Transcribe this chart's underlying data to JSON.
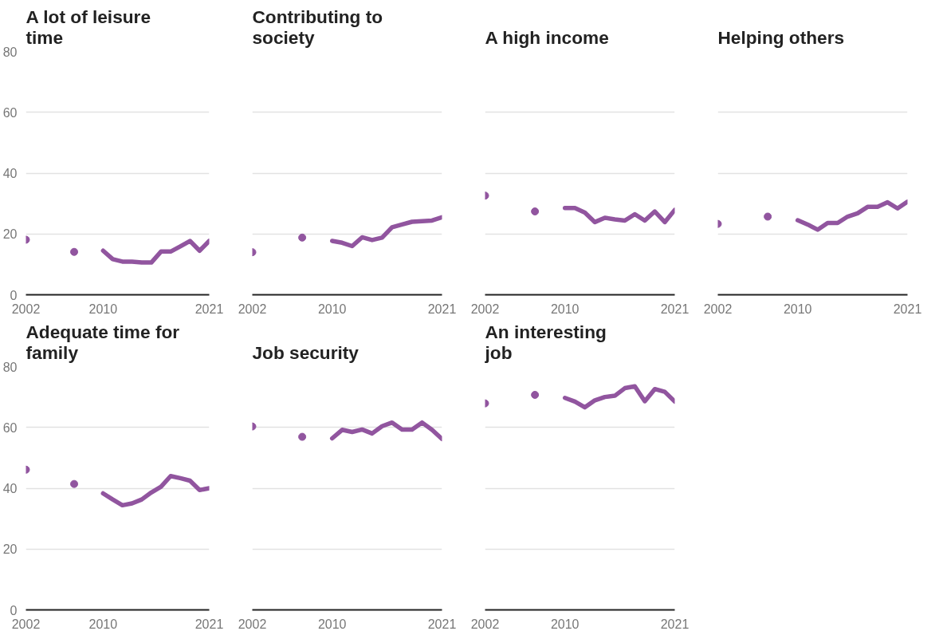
{
  "chart_data": [
    {
      "type": "line",
      "title": "A lot of leisure time",
      "color": "#91559f",
      "xlim": [
        2002,
        2021
      ],
      "ylim": [
        0,
        80
      ],
      "xticks": [
        2002,
        2010,
        2021
      ],
      "yticks": [
        0,
        20,
        40,
        60,
        80
      ],
      "grid": "y",
      "x": [
        2002,
        2003,
        2004,
        2005,
        2006,
        2007,
        2008,
        2009,
        2010,
        2011,
        2012,
        2013,
        2014,
        2015,
        2016,
        2017,
        2018,
        2019,
        2020,
        2021
      ],
      "values": [
        18.1,
        null,
        null,
        null,
        null,
        14.1,
        null,
        null,
        14.5,
        11.7,
        10.9,
        10.9,
        10.6,
        10.6,
        14.2,
        14.2,
        15.9,
        17.7,
        14.5,
        17.7
      ]
    },
    {
      "type": "line",
      "title": "Contributing to society",
      "color": "#91559f",
      "xlim": [
        2002,
        2021
      ],
      "ylim": [
        0,
        80
      ],
      "xticks": [
        2002,
        2010,
        2021
      ],
      "yticks": [
        0,
        20,
        40,
        60,
        80
      ],
      "grid": "y",
      "tick_labels": "x",
      "x": [
        2002,
        2003,
        2004,
        2005,
        2006,
        2007,
        2008,
        2009,
        2010,
        2011,
        2012,
        2013,
        2014,
        2015,
        2016,
        2017,
        2018,
        2019,
        2020,
        2021
      ],
      "values": [
        14.0,
        null,
        null,
        null,
        null,
        18.8,
        null,
        null,
        17.7,
        17.1,
        16.0,
        18.9,
        18.0,
        18.8,
        22.2,
        23.1,
        24.0,
        24.2,
        24.4,
        25.5
      ]
    },
    {
      "type": "line",
      "title": "A high income",
      "color": "#91559f",
      "xlim": [
        2002,
        2021
      ],
      "ylim": [
        0,
        80
      ],
      "xticks": [
        2002,
        2010,
        2021
      ],
      "yticks": [
        0,
        20,
        40,
        60,
        80
      ],
      "grid": "y",
      "tick_labels": "x",
      "x": [
        2002,
        2003,
        2004,
        2005,
        2006,
        2007,
        2008,
        2009,
        2010,
        2011,
        2012,
        2013,
        2014,
        2015,
        2016,
        2017,
        2018,
        2019,
        2020,
        2021
      ],
      "values": [
        32.6,
        null,
        null,
        null,
        null,
        27.4,
        null,
        null,
        28.5,
        28.5,
        27.0,
        23.9,
        25.3,
        24.8,
        24.4,
        26.5,
        24.4,
        27.4,
        23.9,
        27.9
      ]
    },
    {
      "type": "line",
      "title": "Helping others",
      "color": "#91559f",
      "xlim": [
        2002,
        2021
      ],
      "ylim": [
        0,
        80
      ],
      "xticks": [
        2002,
        2010,
        2021
      ],
      "yticks": [
        0,
        20,
        40,
        60,
        80
      ],
      "grid": "y",
      "tick_labels": "x",
      "x": [
        2002,
        2003,
        2004,
        2005,
        2006,
        2007,
        2008,
        2009,
        2010,
        2011,
        2012,
        2013,
        2014,
        2015,
        2016,
        2017,
        2018,
        2019,
        2020,
        2021
      ],
      "values": [
        23.3,
        null,
        null,
        null,
        null,
        25.7,
        null,
        null,
        24.5,
        23.1,
        21.4,
        23.6,
        23.6,
        25.7,
        26.8,
        28.9,
        28.9,
        30.4,
        28.4,
        30.6
      ]
    },
    {
      "type": "line",
      "title": "Adequate time for family",
      "color": "#91559f",
      "xlim": [
        2002,
        2021
      ],
      "ylim": [
        0,
        80
      ],
      "xticks": [
        2002,
        2010,
        2021
      ],
      "yticks": [
        0,
        20,
        40,
        60,
        80
      ],
      "grid": "y",
      "x": [
        2002,
        2003,
        2004,
        2005,
        2006,
        2007,
        2008,
        2009,
        2010,
        2011,
        2012,
        2013,
        2014,
        2015,
        2016,
        2017,
        2018,
        2019,
        2020,
        2021
      ],
      "values": [
        46.1,
        null,
        null,
        null,
        null,
        41.4,
        null,
        null,
        38.3,
        36.3,
        34.4,
        35.0,
        36.3,
        38.6,
        40.5,
        44.0,
        43.3,
        42.5,
        39.4,
        40.0
      ]
    },
    {
      "type": "line",
      "title": "Job security",
      "color": "#91559f",
      "xlim": [
        2002,
        2021
      ],
      "ylim": [
        0,
        80
      ],
      "xticks": [
        2002,
        2010,
        2021
      ],
      "yticks": [
        0,
        20,
        40,
        60,
        80
      ],
      "grid": "y",
      "tick_labels": "x",
      "x": [
        2002,
        2003,
        2004,
        2005,
        2006,
        2007,
        2008,
        2009,
        2010,
        2011,
        2012,
        2013,
        2014,
        2015,
        2016,
        2017,
        2018,
        2019,
        2020,
        2021
      ],
      "values": [
        60.3,
        null,
        null,
        null,
        null,
        56.9,
        null,
        null,
        56.4,
        59.2,
        58.5,
        59.3,
        58.0,
        60.4,
        61.6,
        59.3,
        59.3,
        61.6,
        59.2,
        56.2
      ]
    },
    {
      "type": "line",
      "title": "An interesting job",
      "color": "#91559f",
      "xlim": [
        2002,
        2021
      ],
      "ylim": [
        0,
        80
      ],
      "xticks": [
        2002,
        2010,
        2021
      ],
      "yticks": [
        0,
        20,
        40,
        60,
        80
      ],
      "grid": "y",
      "tick_labels": "x",
      "x": [
        2002,
        2003,
        2004,
        2005,
        2006,
        2007,
        2008,
        2009,
        2010,
        2011,
        2012,
        2013,
        2014,
        2015,
        2016,
        2017,
        2018,
        2019,
        2020,
        2021
      ],
      "values": [
        67.9,
        null,
        null,
        null,
        null,
        70.7,
        null,
        null,
        69.7,
        68.5,
        66.6,
        68.9,
        70.0,
        70.4,
        72.9,
        73.5,
        68.6,
        72.6,
        71.7,
        68.5
      ]
    }
  ]
}
